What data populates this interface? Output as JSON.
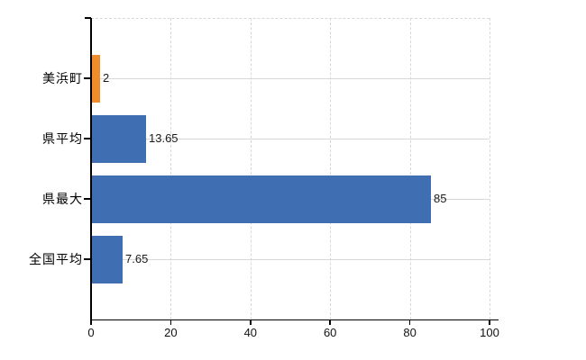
{
  "chart_data": {
    "type": "bar",
    "orientation": "horizontal",
    "title": "",
    "categories": [
      "美浜町",
      "県平均",
      "県最大",
      "全国平均"
    ],
    "values": [
      2,
      13.65,
      85,
      7.65
    ],
    "value_labels": [
      "2",
      "13.65",
      "85",
      "7.65"
    ],
    "bar_colors": [
      "#ef8d2d",
      "#3f6eb2",
      "#3f6eb2",
      "#3f6eb2"
    ],
    "highlight_color": "#ef8d2d",
    "default_bar_color": "#3f6eb2",
    "xlim": [
      0,
      100
    ],
    "x_tick_labels": [
      "0",
      "20",
      "40",
      "60",
      "80",
      "100"
    ],
    "x_tick_values": [
      0,
      20,
      40,
      60,
      80,
      100
    ],
    "grid": true,
    "legend_position": "none",
    "axis_color": "#000000",
    "gridline_color": "#d8d8d8",
    "tick_label_color": "#111111",
    "value_label_color": "#1a1a1a"
  }
}
